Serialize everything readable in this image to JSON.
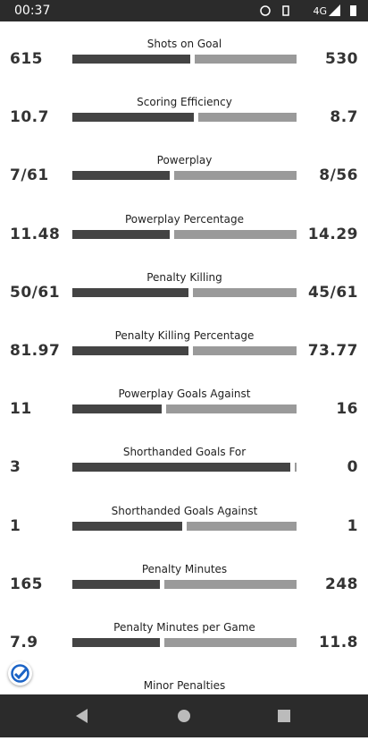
{
  "status_bar": {
    "time": "00:37",
    "network": "4G"
  },
  "stats": [
    {
      "label": "Shots on Goal",
      "left": "615",
      "right": "530"
    },
    {
      "label": "Scoring Efficiency",
      "left": "10.7",
      "right": "8.7"
    },
    {
      "label": "Powerplay",
      "left": "7/61",
      "right": "8/56"
    },
    {
      "label": "Powerplay Percentage",
      "left": "11.48",
      "right": "14.29"
    },
    {
      "label": "Penalty Killing",
      "left": "50/61",
      "right": "45/61"
    },
    {
      "label": "Penalty Killing Percentage",
      "left": "81.97",
      "right": "73.77"
    },
    {
      "label": "Powerplay Goals Against",
      "left": "11",
      "right": "16"
    },
    {
      "label": "Shorthanded Goals For",
      "left": "3",
      "right": "0"
    },
    {
      "label": "Shorthanded Goals Against",
      "left": "1",
      "right": "1"
    },
    {
      "label": "Penalty Minutes",
      "left": "165",
      "right": "248"
    },
    {
      "label": "Penalty Minutes per Game",
      "left": "7.9",
      "right": "11.8"
    },
    {
      "label": "Minor Penalties"
    }
  ]
}
